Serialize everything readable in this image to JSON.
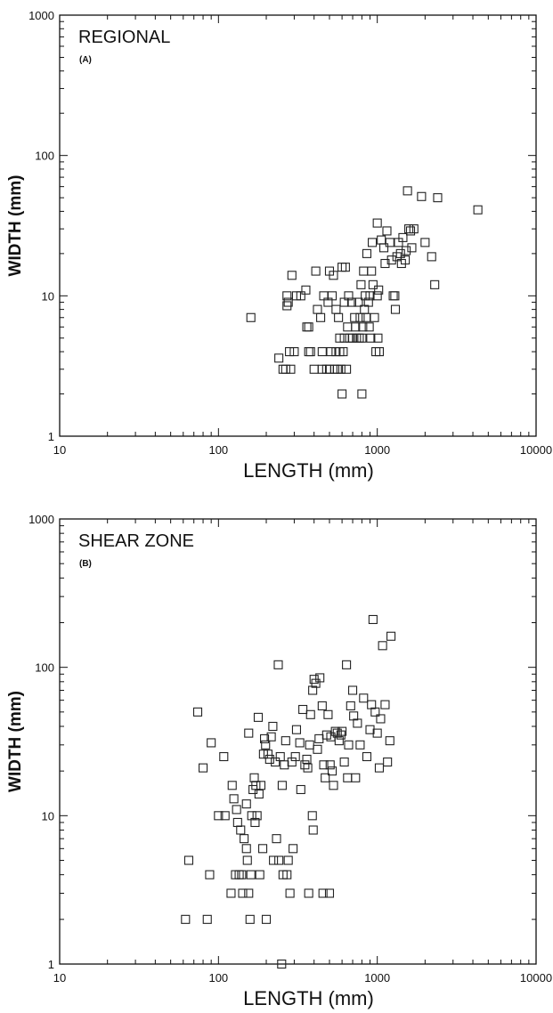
{
  "chart_data": [
    {
      "type": "scatter",
      "title": "REGIONAL",
      "panel_label": "(A)",
      "xlabel": "LENGTH (mm)",
      "ylabel": "WIDTH (mm)",
      "xscale": "log",
      "yscale": "log",
      "xlim": [
        10,
        10000
      ],
      "ylim": [
        1,
        1000
      ],
      "x_ticks": [
        "10",
        "100",
        "1000",
        "10000"
      ],
      "y_ticks": [
        "1",
        "10",
        "100",
        "1000"
      ],
      "grid": false,
      "marker": "open-square",
      "series": [
        {
          "points": [
            [
              160,
              7
            ],
            [
              240,
              3.6
            ],
            [
              255,
              3
            ],
            [
              265,
              3
            ],
            [
              270,
              10
            ],
            [
              270,
              8.5
            ],
            [
              275,
              9
            ],
            [
              280,
              4
            ],
            [
              285,
              3
            ],
            [
              290,
              14
            ],
            [
              300,
              4
            ],
            [
              310,
              10
            ],
            [
              330,
              10
            ],
            [
              355,
              11
            ],
            [
              360,
              6
            ],
            [
              370,
              6
            ],
            [
              370,
              4
            ],
            [
              380,
              4
            ],
            [
              400,
              3
            ],
            [
              410,
              15
            ],
            [
              420,
              8
            ],
            [
              440,
              7
            ],
            [
              450,
              4
            ],
            [
              450,
              3
            ],
            [
              460,
              10
            ],
            [
              480,
              3
            ],
            [
              490,
              9
            ],
            [
              500,
              15
            ],
            [
              500,
              3
            ],
            [
              510,
              4
            ],
            [
              520,
              10
            ],
            [
              530,
              14
            ],
            [
              540,
              3
            ],
            [
              550,
              4
            ],
            [
              550,
              8
            ],
            [
              560,
              3
            ],
            [
              570,
              7
            ],
            [
              580,
              5
            ],
            [
              580,
              4
            ],
            [
              590,
              3
            ],
            [
              600,
              16
            ],
            [
              600,
              2
            ],
            [
              610,
              4
            ],
            [
              620,
              9
            ],
            [
              620,
              5
            ],
            [
              630,
              16
            ],
            [
              640,
              3
            ],
            [
              650,
              6
            ],
            [
              660,
              10
            ],
            [
              670,
              5
            ],
            [
              690,
              9
            ],
            [
              700,
              5
            ],
            [
              720,
              7
            ],
            [
              730,
              6
            ],
            [
              740,
              5
            ],
            [
              760,
              9
            ],
            [
              770,
              5
            ],
            [
              780,
              7
            ],
            [
              790,
              12
            ],
            [
              800,
              5
            ],
            [
              800,
              2
            ],
            [
              810,
              6
            ],
            [
              820,
              15
            ],
            [
              830,
              8
            ],
            [
              840,
              10
            ],
            [
              850,
              7
            ],
            [
              860,
              20
            ],
            [
              880,
              9
            ],
            [
              890,
              6
            ],
            [
              900,
              10
            ],
            [
              910,
              5
            ],
            [
              920,
              15
            ],
            [
              930,
              24
            ],
            [
              940,
              12
            ],
            [
              960,
              7
            ],
            [
              980,
              4
            ],
            [
              1000,
              10
            ],
            [
              1000,
              33
            ],
            [
              1010,
              5
            ],
            [
              1020,
              11
            ],
            [
              1030,
              4
            ],
            [
              1060,
              25
            ],
            [
              1100,
              22
            ],
            [
              1120,
              17
            ],
            [
              1150,
              29
            ],
            [
              1200,
              24
            ],
            [
              1230,
              18
            ],
            [
              1260,
              10
            ],
            [
              1290,
              10
            ],
            [
              1300,
              8
            ],
            [
              1330,
              19
            ],
            [
              1360,
              24
            ],
            [
              1400,
              20
            ],
            [
              1420,
              17
            ],
            [
              1450,
              26
            ],
            [
              1500,
              18
            ],
            [
              1520,
              21
            ],
            [
              1550,
              56
            ],
            [
              1580,
              30
            ],
            [
              1620,
              29
            ],
            [
              1650,
              22
            ],
            [
              1700,
              30
            ],
            [
              1900,
              51
            ],
            [
              2000,
              24
            ],
            [
              2200,
              19
            ],
            [
              2300,
              12
            ],
            [
              2400,
              50
            ],
            [
              4300,
              41
            ]
          ]
        }
      ]
    },
    {
      "type": "scatter",
      "title": "SHEAR ZONE",
      "panel_label": "(B)",
      "xlabel": "LENGTH (mm)",
      "ylabel": "WIDTH (mm)",
      "xscale": "log",
      "yscale": "log",
      "xlim": [
        10,
        10000
      ],
      "ylim": [
        1,
        1000
      ],
      "x_ticks": [
        "10",
        "100",
        "1000",
        "10000"
      ],
      "y_ticks": [
        "1",
        "10",
        "100",
        "1000"
      ],
      "grid": false,
      "marker": "open-square",
      "series": [
        {
          "points": [
            [
              62,
              2
            ],
            [
              65,
              5
            ],
            [
              74,
              50
            ],
            [
              80,
              21
            ],
            [
              85,
              2
            ],
            [
              88,
              4
            ],
            [
              90,
              31
            ],
            [
              100,
              10
            ],
            [
              108,
              25
            ],
            [
              110,
              10
            ],
            [
              120,
              3
            ],
            [
              122,
              16
            ],
            [
              125,
              13
            ],
            [
              128,
              4
            ],
            [
              130,
              11
            ],
            [
              132,
              9
            ],
            [
              135,
              4
            ],
            [
              138,
              8
            ],
            [
              140,
              4
            ],
            [
              142,
              3
            ],
            [
              145,
              7
            ],
            [
              150,
              6
            ],
            [
              150,
              12
            ],
            [
              152,
              5
            ],
            [
              155,
              36
            ],
            [
              155,
              3
            ],
            [
              158,
              2
            ],
            [
              160,
              4
            ],
            [
              162,
              10
            ],
            [
              165,
              15
            ],
            [
              168,
              18
            ],
            [
              170,
              9
            ],
            [
              172,
              16
            ],
            [
              175,
              10
            ],
            [
              178,
              46
            ],
            [
              180,
              14
            ],
            [
              182,
              4
            ],
            [
              185,
              16
            ],
            [
              190,
              6
            ],
            [
              192,
              26
            ],
            [
              195,
              33
            ],
            [
              198,
              30
            ],
            [
              200,
              2
            ],
            [
              205,
              26
            ],
            [
              210,
              24
            ],
            [
              215,
              34
            ],
            [
              220,
              40
            ],
            [
              222,
              5
            ],
            [
              228,
              23
            ],
            [
              232,
              7
            ],
            [
              238,
              104
            ],
            [
              240,
              5
            ],
            [
              245,
              25
            ],
            [
              250,
              1
            ],
            [
              252,
              16
            ],
            [
              255,
              4
            ],
            [
              260,
              22
            ],
            [
              265,
              32
            ],
            [
              270,
              4
            ],
            [
              275,
              5
            ],
            [
              282,
              3
            ],
            [
              290,
              23
            ],
            [
              295,
              6
            ],
            [
              305,
              25
            ],
            [
              310,
              38
            ],
            [
              325,
              31
            ],
            [
              330,
              15
            ],
            [
              340,
              52
            ],
            [
              350,
              22
            ],
            [
              360,
              24
            ],
            [
              365,
              21
            ],
            [
              370,
              3
            ],
            [
              375,
              30
            ],
            [
              380,
              48
            ],
            [
              390,
              10
            ],
            [
              392,
              70
            ],
            [
              395,
              8
            ],
            [
              400,
              83
            ],
            [
              410,
              78
            ],
            [
              420,
              28
            ],
            [
              430,
              33
            ],
            [
              435,
              85
            ],
            [
              450,
              55
            ],
            [
              455,
              3
            ],
            [
              460,
              22
            ],
            [
              470,
              18
            ],
            [
              480,
              35
            ],
            [
              490,
              48
            ],
            [
              500,
              3
            ],
            [
              505,
              22
            ],
            [
              510,
              34
            ],
            [
              520,
              20
            ],
            [
              530,
              16
            ],
            [
              545,
              37
            ],
            [
              560,
              36
            ],
            [
              575,
              32
            ],
            [
              590,
              35
            ],
            [
              600,
              37
            ],
            [
              620,
              23
            ],
            [
              640,
              104
            ],
            [
              650,
              18
            ],
            [
              660,
              30
            ],
            [
              680,
              55
            ],
            [
              700,
              70
            ],
            [
              710,
              47
            ],
            [
              730,
              18
            ],
            [
              750,
              42
            ],
            [
              780,
              30
            ],
            [
              820,
              62
            ],
            [
              860,
              25
            ],
            [
              900,
              38
            ],
            [
              920,
              56
            ],
            [
              940,
              210
            ],
            [
              970,
              50
            ],
            [
              1000,
              36
            ],
            [
              1030,
              21
            ],
            [
              1050,
              45
            ],
            [
              1080,
              140
            ],
            [
              1120,
              56
            ],
            [
              1160,
              23
            ],
            [
              1200,
              32
            ],
            [
              1220,
              162
            ]
          ]
        }
      ]
    }
  ]
}
